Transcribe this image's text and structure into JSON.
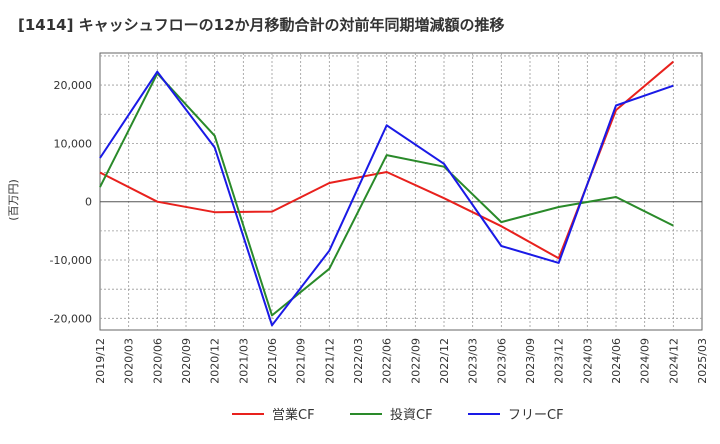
{
  "chart_data": {
    "type": "line",
    "title": "[1414]  キャッシュフローの12か月移動合計の対前年同期増減額の推移",
    "ylabel": "(百万円)",
    "xlabel": "",
    "x": [
      "2019/12",
      "2020/03",
      "2020/06",
      "2020/09",
      "2020/12",
      "2021/03",
      "2021/06",
      "2021/09",
      "2021/12",
      "2022/03",
      "2022/06",
      "2022/09",
      "2022/12",
      "2023/03",
      "2023/06",
      "2023/09",
      "2023/12",
      "2024/03",
      "2024/06",
      "2024/09",
      "2024/12",
      "2025/03"
    ],
    "ylim": [
      -22000,
      25500
    ],
    "yticks": [
      -20000,
      -10000,
      0,
      10000,
      20000
    ],
    "ytick_labels": [
      "-20,000",
      "-10,000",
      "0",
      "10,000",
      "20,000"
    ],
    "grid": true,
    "legend_position": "bottom",
    "series": [
      {
        "name": "営業CF",
        "color": "#e8211d",
        "values": [
          5000,
          null,
          0,
          null,
          -1800,
          null,
          -1700,
          null,
          3200,
          null,
          5100,
          null,
          600,
          null,
          -4200,
          null,
          -9700,
          null,
          15700,
          null,
          24000,
          null
        ]
      },
      {
        "name": "投資CF",
        "color": "#2a8a2a",
        "values": [
          2500,
          null,
          22000,
          null,
          11300,
          null,
          -19500,
          null,
          -11500,
          null,
          8000,
          null,
          6000,
          null,
          -3500,
          null,
          -900,
          null,
          800,
          null,
          -4100,
          null
        ]
      },
      {
        "name": "フリーCF",
        "color": "#1a1ae6",
        "values": [
          7500,
          null,
          22300,
          null,
          9300,
          null,
          -21200,
          null,
          -8400,
          null,
          13100,
          null,
          6500,
          null,
          -7600,
          null,
          -10500,
          null,
          16500,
          null,
          19900,
          null
        ]
      }
    ]
  }
}
